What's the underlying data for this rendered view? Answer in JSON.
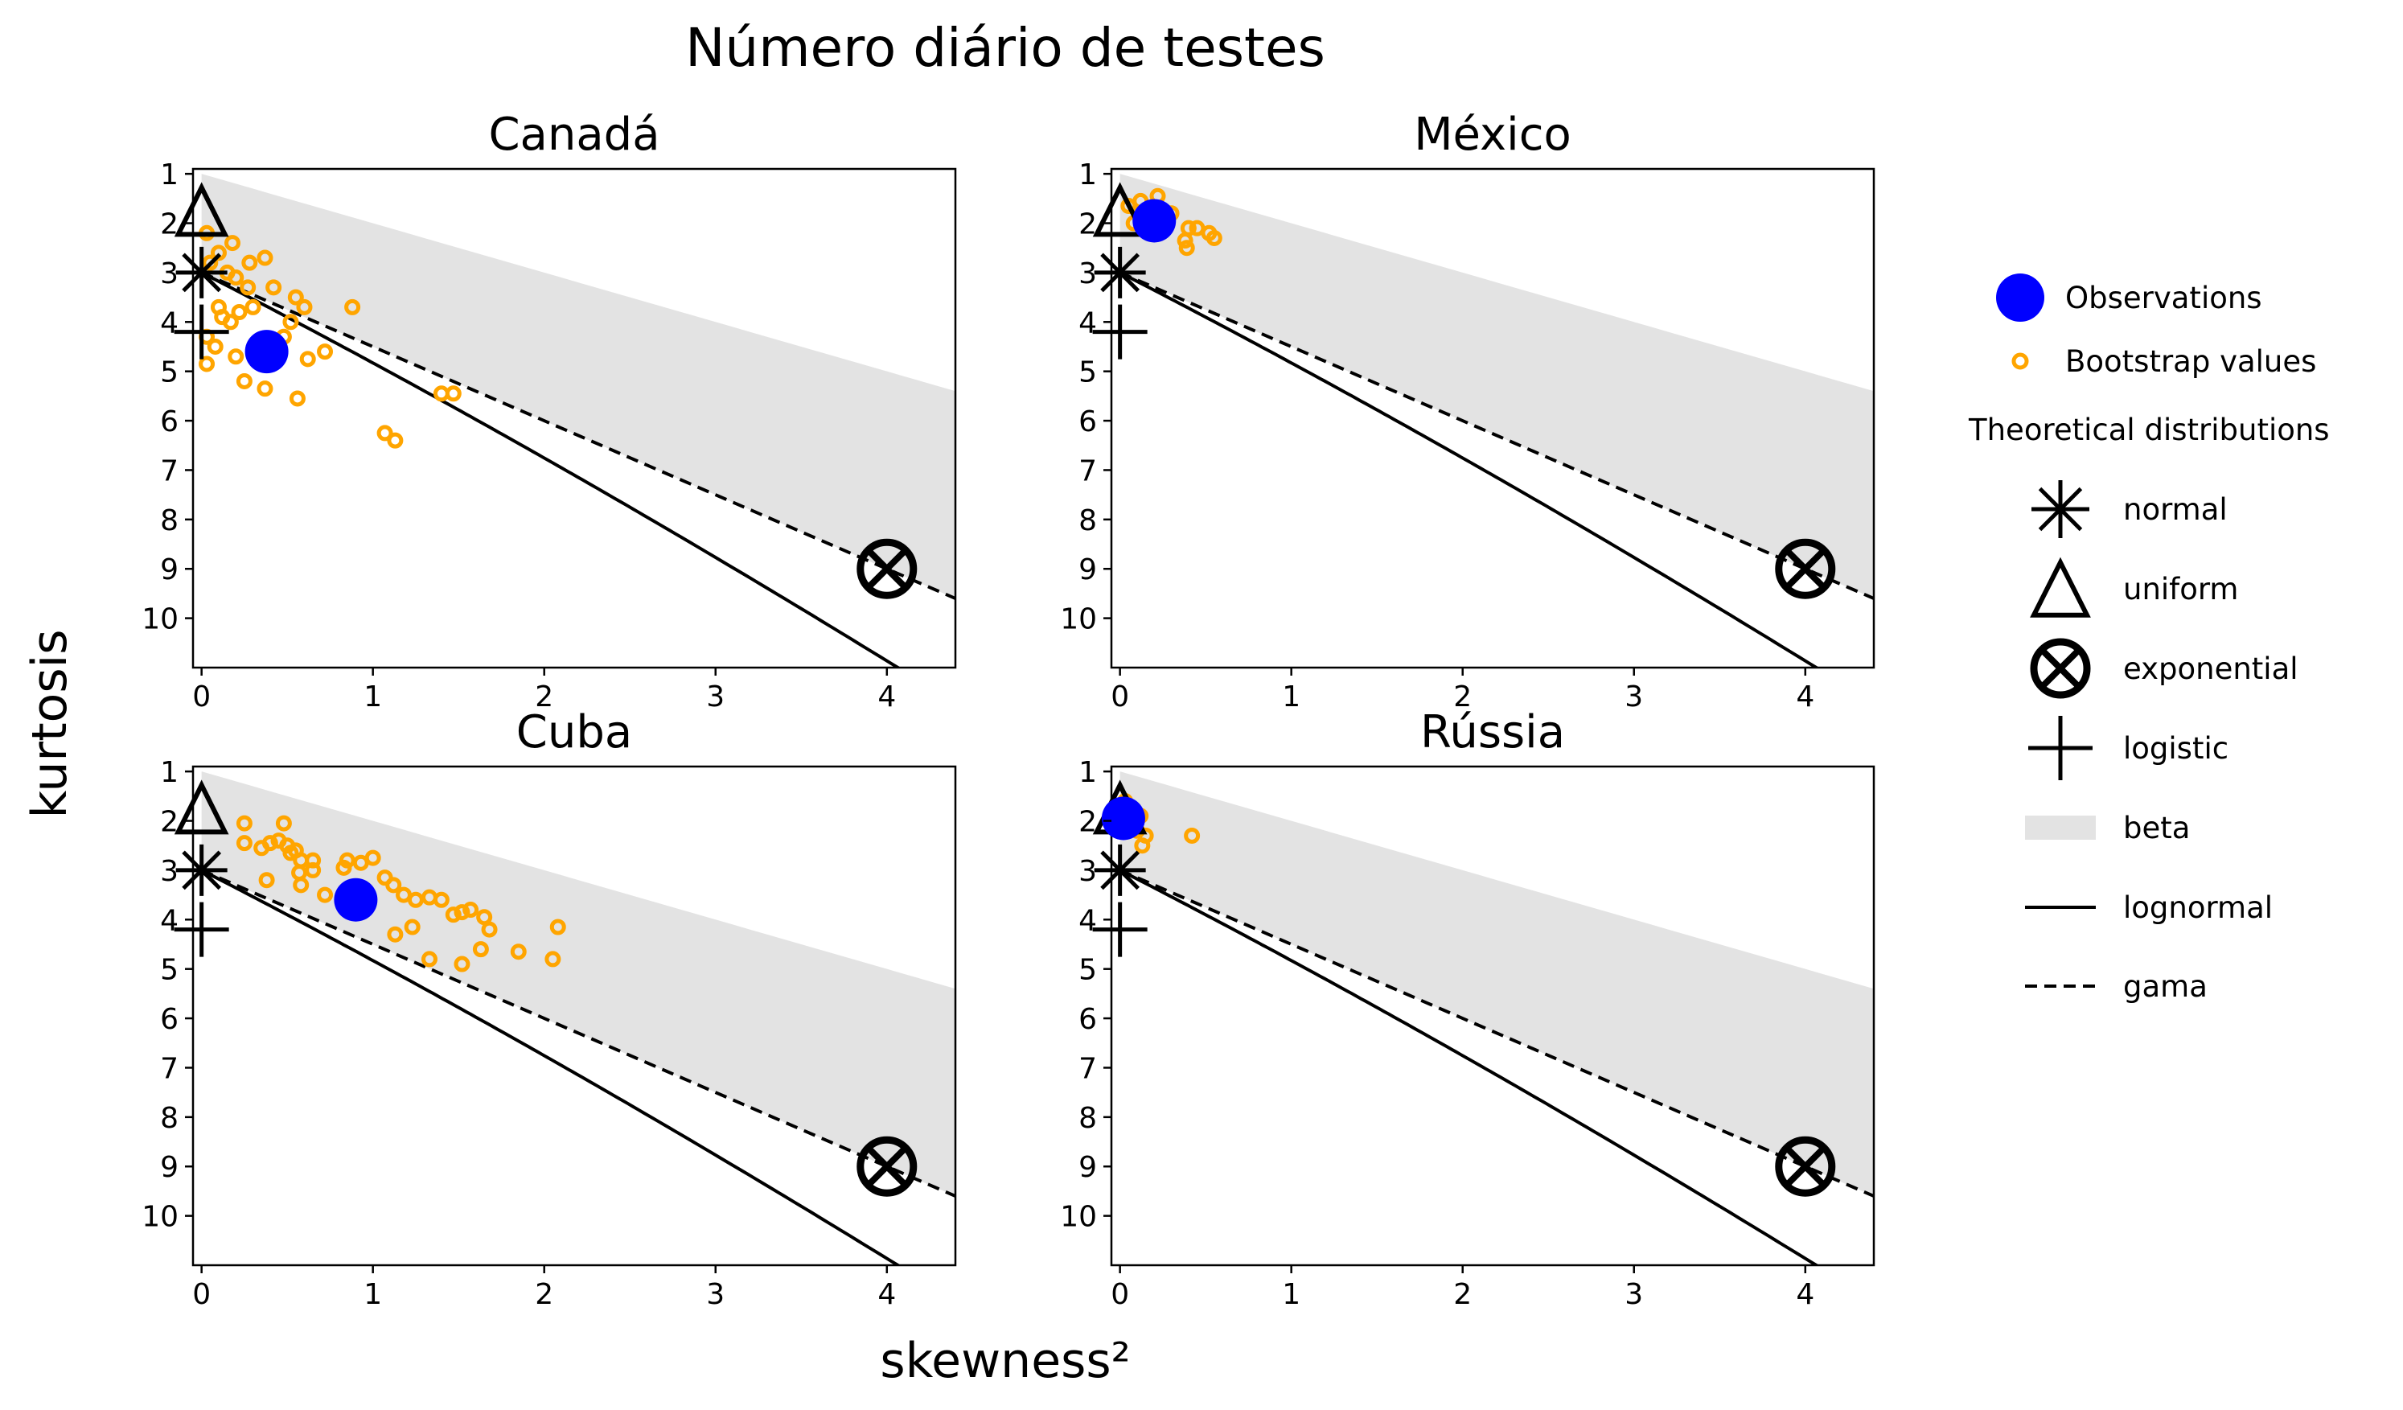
{
  "figure": {
    "title": "Número diário de testes",
    "xlabel": "skewness²",
    "ylabel": "kurtosis"
  },
  "legend": {
    "observations": "Observations",
    "bootstrap": "Bootstrap values",
    "theoretical_header": "Theoretical distributions",
    "normal": "normal",
    "uniform": "uniform",
    "exponential": "exponential",
    "logistic": "logistic",
    "beta": "beta",
    "lognormal": "lognormal",
    "gama": "gama"
  },
  "colors": {
    "observation": "#0000ff",
    "bootstrap": "#ffa500",
    "beta_region": "#e3e3e3",
    "theoretical": "#000000"
  },
  "chart_data": [
    {
      "type": "scatter",
      "title": "Canadá",
      "xlim": [
        -0.05,
        4.4
      ],
      "ylim": [
        11,
        0.9
      ],
      "y_inverted": true,
      "xticks": [
        0,
        1,
        2,
        3,
        4
      ],
      "yticks": [
        1,
        2,
        3,
        4,
        5,
        6,
        7,
        8,
        9,
        10
      ],
      "observation": [
        0.38,
        4.6
      ],
      "bootstrap": [
        [
          0.03,
          2.2
        ],
        [
          0.18,
          2.4
        ],
        [
          0.1,
          2.6
        ],
        [
          0.05,
          2.8
        ],
        [
          0.28,
          2.8
        ],
        [
          0.37,
          2.7
        ],
        [
          0.15,
          3.0
        ],
        [
          0.2,
          3.1
        ],
        [
          0.27,
          3.3
        ],
        [
          0.42,
          3.3
        ],
        [
          0.55,
          3.5
        ],
        [
          0.6,
          3.7
        ],
        [
          0.1,
          3.7
        ],
        [
          0.12,
          3.9
        ],
        [
          0.22,
          3.8
        ],
        [
          0.3,
          3.7
        ],
        [
          0.17,
          4.0
        ],
        [
          0.52,
          4.0
        ],
        [
          0.88,
          3.7
        ],
        [
          0.03,
          4.3
        ],
        [
          0.08,
          4.5
        ],
        [
          0.2,
          4.7
        ],
        [
          0.03,
          4.85
        ],
        [
          0.36,
          4.6
        ],
        [
          0.62,
          4.75
        ],
        [
          0.72,
          4.6
        ],
        [
          0.48,
          4.3
        ],
        [
          0.25,
          5.2
        ],
        [
          0.37,
          5.35
        ],
        [
          0.56,
          5.55
        ],
        [
          1.4,
          5.45
        ],
        [
          1.47,
          5.45
        ],
        [
          1.07,
          6.25
        ],
        [
          1.13,
          6.4
        ]
      ]
    },
    {
      "type": "scatter",
      "title": "México",
      "xlim": [
        -0.05,
        4.4
      ],
      "ylim": [
        11,
        0.9
      ],
      "y_inverted": true,
      "xticks": [
        0,
        1,
        2,
        3,
        4
      ],
      "yticks": [
        1,
        2,
        3,
        4,
        5,
        6,
        7,
        8,
        9,
        10
      ],
      "observation": [
        0.2,
        1.95
      ],
      "bootstrap": [
        [
          0.05,
          1.65
        ],
        [
          0.12,
          1.55
        ],
        [
          0.22,
          1.45
        ],
        [
          0.08,
          2.0
        ],
        [
          0.15,
          2.1
        ],
        [
          0.3,
          1.8
        ],
        [
          0.4,
          2.1
        ],
        [
          0.45,
          2.1
        ],
        [
          0.52,
          2.2
        ],
        [
          0.55,
          2.3
        ],
        [
          0.38,
          2.35
        ],
        [
          0.39,
          2.5
        ]
      ]
    },
    {
      "type": "scatter",
      "title": "Cuba",
      "xlim": [
        -0.05,
        4.4
      ],
      "ylim": [
        11,
        0.9
      ],
      "y_inverted": true,
      "xticks": [
        0,
        1,
        2,
        3,
        4
      ],
      "yticks": [
        1,
        2,
        3,
        4,
        5,
        6,
        7,
        8,
        9,
        10
      ],
      "observation": [
        0.9,
        3.6
      ],
      "bootstrap": [
        [
          0.25,
          2.05
        ],
        [
          0.48,
          2.05
        ],
        [
          0.25,
          2.45
        ],
        [
          0.35,
          2.55
        ],
        [
          0.4,
          2.45
        ],
        [
          0.45,
          2.4
        ],
        [
          0.5,
          2.5
        ],
        [
          0.52,
          2.65
        ],
        [
          0.55,
          2.6
        ],
        [
          0.58,
          2.8
        ],
        [
          0.65,
          2.8
        ],
        [
          0.57,
          3.05
        ],
        [
          0.38,
          3.2
        ],
        [
          0.65,
          3.0
        ],
        [
          0.58,
          3.3
        ],
        [
          0.72,
          3.5
        ],
        [
          0.83,
          2.95
        ],
        [
          0.85,
          2.8
        ],
        [
          0.93,
          2.85
        ],
        [
          1.0,
          2.75
        ],
        [
          1.07,
          3.15
        ],
        [
          1.12,
          3.3
        ],
        [
          1.18,
          3.5
        ],
        [
          1.25,
          3.6
        ],
        [
          1.33,
          3.55
        ],
        [
          1.4,
          3.6
        ],
        [
          1.47,
          3.9
        ],
        [
          1.52,
          3.85
        ],
        [
          1.57,
          3.8
        ],
        [
          1.65,
          3.95
        ],
        [
          1.68,
          4.2
        ],
        [
          1.23,
          4.15
        ],
        [
          1.13,
          4.3
        ],
        [
          1.33,
          4.8
        ],
        [
          1.52,
          4.9
        ],
        [
          1.63,
          4.6
        ],
        [
          1.85,
          4.65
        ],
        [
          2.05,
          4.8
        ],
        [
          2.08,
          4.15
        ]
      ]
    },
    {
      "type": "scatter",
      "title": "Rússia",
      "xlim": [
        -0.05,
        4.4
      ],
      "ylim": [
        11,
        0.9
      ],
      "y_inverted": true,
      "xticks": [
        0,
        1,
        2,
        3,
        4
      ],
      "yticks": [
        1,
        2,
        3,
        4,
        5,
        6,
        7,
        8,
        9,
        10
      ],
      "observation": [
        0.02,
        1.95
      ],
      "bootstrap": [
        [
          0.03,
          1.6
        ],
        [
          0.08,
          1.8
        ],
        [
          0.12,
          1.9
        ],
        [
          0.1,
          2.2
        ],
        [
          0.15,
          2.3
        ],
        [
          0.13,
          2.5
        ],
        [
          0.42,
          2.3
        ]
      ]
    }
  ]
}
